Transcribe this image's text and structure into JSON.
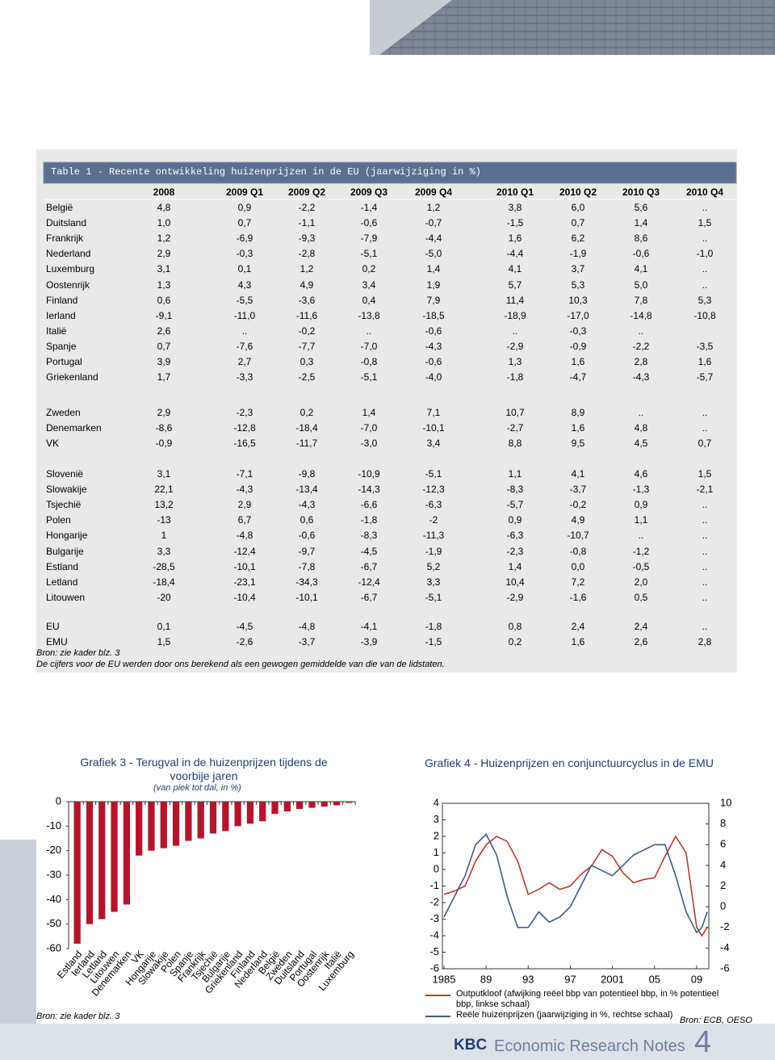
{
  "table": {
    "title": "Table 1 - Recente ontwikkeling huizenprijzen in de EU (jaarwijziging in %)",
    "columns": [
      "2008",
      "2009 Q1",
      "2009 Q2",
      "2009 Q3",
      "2009 Q4",
      "2010 Q1",
      "2010 Q2",
      "2010 Q3",
      "2010 Q4"
    ],
    "groups": [
      [
        [
          "België",
          "4,8",
          "0,9",
          "-2,2",
          "-1,4",
          "1,2",
          "3,8",
          "6,0",
          "5,6",
          ".."
        ],
        [
          "Duitsland",
          "1,0",
          "0,7",
          "-1,1",
          "-0,6",
          "-0,7",
          "-1,5",
          "0,7",
          "1,4",
          "1,5"
        ],
        [
          "Frankrijk",
          "1,2",
          "-6,9",
          "-9,3",
          "-7,9",
          "-4,4",
          "1,6",
          "6,2",
          "8,6",
          ".."
        ],
        [
          "Nederland",
          "2,9",
          "-0,3",
          "-2,8",
          "-5,1",
          "-5,0",
          "-4,4",
          "-1,9",
          "-0,6",
          "-1,0"
        ],
        [
          "Luxemburg",
          "3,1",
          "0,1",
          "1,2",
          "0,2",
          "1,4",
          "4,1",
          "3,7",
          "4,1",
          ".."
        ],
        [
          "Oostenrijk",
          "1,3",
          "4,3",
          "4,9",
          "3,4",
          "1,9",
          "5,7",
          "5,3",
          "5,0",
          ".."
        ],
        [
          "Finland",
          "0,6",
          "-5,5",
          "-3,6",
          "0,4",
          "7,9",
          "11,4",
          "10,3",
          "7,8",
          "5,3"
        ],
        [
          "Ierland",
          "-9,1",
          "-11,0",
          "-11,6",
          "-13,8",
          "-18,5",
          "-18,9",
          "-17,0",
          "-14,8",
          "-10,8"
        ],
        [
          "Italië",
          "2,6",
          "..",
          "-0,2",
          "..",
          "-0,6",
          "..",
          "-0,3",
          "..",
          null
        ],
        [
          "Spanje",
          "0,7",
          "-7,6",
          "-7,7",
          "-7,0",
          "-4,3",
          "-2,9",
          "-0,9",
          "-2,2",
          "-3,5"
        ],
        [
          "Portugal",
          "3,9",
          "2,7",
          "0,3",
          "-0,8",
          "-0,6",
          "1,3",
          "1,6",
          "2,8",
          "1,6"
        ],
        [
          "Griekenland",
          "1,7",
          "-3,3",
          "-2,5",
          "-5,1",
          "-4,0",
          "-1,8",
          "-4,7",
          "-4,3",
          "-5,7"
        ]
      ],
      [
        [
          "Zweden",
          "2,9",
          "-2,3",
          "0,2",
          "1,4",
          "7,1",
          "10,7",
          "8,9",
          "..",
          ".."
        ],
        [
          "Denemarken",
          "-8,6",
          "-12,8",
          "-18,4",
          "-7,0",
          "-10,1",
          "-2,7",
          "1,6",
          "4,8",
          ".."
        ],
        [
          "VK",
          "-0,9",
          "-16,5",
          "-11,7",
          "-3,0",
          "3,4",
          "8,8",
          "9,5",
          "4,5",
          "0,7"
        ]
      ],
      [
        [
          "Slovenië",
          "3,1",
          "-7,1",
          "-9,8",
          "-10,9",
          "-5,1",
          "1,1",
          "4,1",
          "4,6",
          "1,5"
        ],
        [
          "Slowakije",
          "22,1",
          "-4,3",
          "-13,4",
          "-14,3",
          "-12,3",
          "-8,3",
          "-3,7",
          "-1,3",
          "-2,1"
        ],
        [
          "Tsjechië",
          "13,2",
          "2,9",
          "-4,3",
          "-6,6",
          "-6,3",
          "-5,7",
          "-0,2",
          "0,9",
          ".."
        ],
        [
          "Polen",
          "-13",
          "6,7",
          "0,6",
          "-1,8",
          "-2",
          "0,9",
          "4,9",
          "1,1",
          ".."
        ],
        [
          "Hongarije",
          "1",
          "-4,8",
          "-0,6",
          "-8,3",
          "-11,3",
          "-6,3",
          "-10,7",
          "..",
          ".."
        ],
        [
          "Bulgarije",
          "3,3",
          "-12,4",
          "-9,7",
          "-4,5",
          "-1,9",
          "-2,3",
          "-0,8",
          "-1,2",
          ".."
        ],
        [
          "Estland",
          "-28,5",
          "-10,1",
          "-7,8",
          "-6,7",
          "5,2",
          "1,4",
          "0,0",
          "-0,5",
          ".."
        ],
        [
          "Letland",
          "-18,4",
          "-23,1",
          "-34,3",
          "-12,4",
          "3,3",
          "10,4",
          "7,2",
          "2,0",
          ".."
        ],
        [
          "Litouwen",
          "-20",
          "-10,4",
          "-10,1",
          "-6,7",
          "-5,1",
          "-2,9",
          "-1,6",
          "0,5",
          ".."
        ]
      ],
      [
        [
          "EU",
          "0,1",
          "-4,5",
          "-4,8",
          "-4,1",
          "-1,8",
          "0,8",
          "2,4",
          "2,4",
          ".."
        ],
        [
          "EMU",
          "1,5",
          "-2,6",
          "-3,7",
          "-3,9",
          "-1,5",
          "0,2",
          "1,6",
          "2,6",
          "2,8"
        ]
      ]
    ],
    "source": "Bron: zie kader blz. 3",
    "note": "De cijfers voor de EU werden door ons berekend als een gewogen gemiddelde van die van de lidstaten."
  },
  "chart_data": [
    {
      "type": "bar",
      "title": "Grafiek 3 - Terugval in de huizenprijzen tijdens de voorbije jaren",
      "subtitle": "(van piek tot dal, in %)",
      "categories": [
        "Estland",
        "Ierland",
        "Letland",
        "Litouwen",
        "Denemarken",
        "VK",
        "Hongarije",
        "Slowakije",
        "Polen",
        "Spanje",
        "Frankrijk",
        "Tsjechië",
        "Bulgarije",
        "Griekenland",
        "Finland",
        "Nederland",
        "België",
        "Zweden",
        "Duitsland",
        "Portugal",
        "Oostenrijk",
        "Italië",
        "Luxemburg"
      ],
      "values": [
        -58,
        -50,
        -48,
        -45,
        -42,
        -22,
        -20,
        -19,
        -18,
        -16,
        -15,
        -13,
        -12,
        -10,
        -9,
        -8,
        -5,
        -4,
        -3,
        -2.5,
        -2,
        -1.5,
        -0.5
      ],
      "color": "#b3162c",
      "ylim": [
        -60,
        0
      ],
      "yticks": [
        0,
        -10,
        -20,
        -30,
        -40,
        -50,
        -60
      ],
      "source": "Bron: zie kader blz. 3"
    },
    {
      "type": "line",
      "title": "Grafiek 4 - Huizenprijzen en conjunctuurcyclus in de EMU",
      "x": [
        1985,
        1986,
        1987,
        1988,
        1989,
        1990,
        1991,
        1992,
        1993,
        1994,
        1995,
        1996,
        1997,
        1998,
        1999,
        2000,
        2001,
        2002,
        2003,
        2004,
        2005,
        2006,
        2007,
        2008,
        2009,
        2009.5,
        2010
      ],
      "xlim": [
        1985,
        2010
      ],
      "xticks": [
        {
          "value": 1985,
          "label": "1985"
        },
        {
          "value": 1989,
          "label": "89"
        },
        {
          "value": 1993,
          "label": "93"
        },
        {
          "value": 1997,
          "label": "97"
        },
        {
          "value": 2001,
          "label": "2001"
        },
        {
          "value": 2005,
          "label": "05"
        },
        {
          "value": 2009,
          "label": "09"
        }
      ],
      "ylim": [
        -6,
        4
      ],
      "yticks": [
        4,
        3,
        2,
        1,
        0,
        -1,
        -2,
        -3,
        -4,
        -5,
        -6
      ],
      "y2lim": [
        -6,
        10
      ],
      "y2ticks": [
        10,
        8,
        6,
        4,
        2,
        0,
        -2,
        -4,
        -6
      ],
      "series": [
        {
          "name": "Outputkloof (afwijking reëel bbp van potentieel bbp, in % potentieel bbp, linkse schaal)",
          "color": "#c0392b",
          "values": [
            -1.5,
            -1.3,
            -1,
            0.5,
            1.5,
            2,
            1.7,
            0.5,
            -1.5,
            -1.2,
            -0.8,
            -1.2,
            -1,
            -0.3,
            0.2,
            1.2,
            0.8,
            -0.2,
            -0.8,
            -0.6,
            -0.5,
            0.8,
            2,
            1,
            -3.5,
            -4,
            -3.5
          ]
        },
        {
          "name": "Reële huizenprijzen (jaarwijziging in %, rechtse schaal)",
          "color": "#3d5a8a",
          "axis": "y2",
          "values": [
            -1,
            1,
            3,
            6,
            7,
            5,
            1,
            -2,
            -2,
            -0.5,
            -1.5,
            -1,
            0,
            2,
            4,
            3.5,
            3,
            4,
            5,
            5.5,
            6,
            6,
            3,
            -0.5,
            -2.5,
            -2,
            -0.5
          ]
        }
      ],
      "source": "Bron: ECB, OESO"
    }
  ],
  "footer": {
    "brand": "KBC",
    "title": "Economic Research Notes",
    "page": "4"
  }
}
